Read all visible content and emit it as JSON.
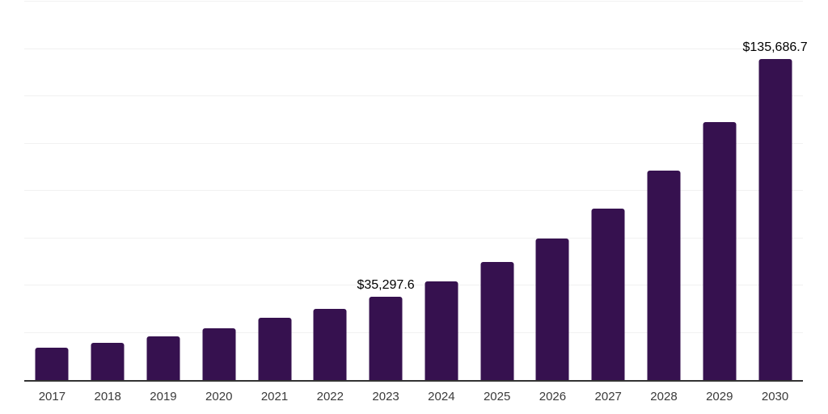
{
  "chart_data": {
    "type": "bar",
    "title": "",
    "xlabel": "",
    "ylabel": "",
    "categories": [
      "2017",
      "2018",
      "2019",
      "2020",
      "2021",
      "2022",
      "2023",
      "2024",
      "2025",
      "2026",
      "2027",
      "2028",
      "2029",
      "2030"
    ],
    "values": [
      13600,
      15600,
      18450,
      21900,
      26200,
      30200,
      35297.6,
      41600,
      49800,
      59900,
      72400,
      88500,
      109200,
      135686.7
    ],
    "data_labels": {
      "2023": "$35,297.6",
      "2030": "$135,686.7"
    },
    "ylim": [
      0,
      160000
    ],
    "grid_step": 20000,
    "grid": "horizontal gridlines only, no y-axis tick labels",
    "legend": "none",
    "colors": {
      "bar": "#36114F",
      "grid": "#f1f1f1",
      "axis": "#333333",
      "tick_label": "#3a3a3a",
      "data_label": "#000000",
      "background": "#ffffff"
    }
  }
}
